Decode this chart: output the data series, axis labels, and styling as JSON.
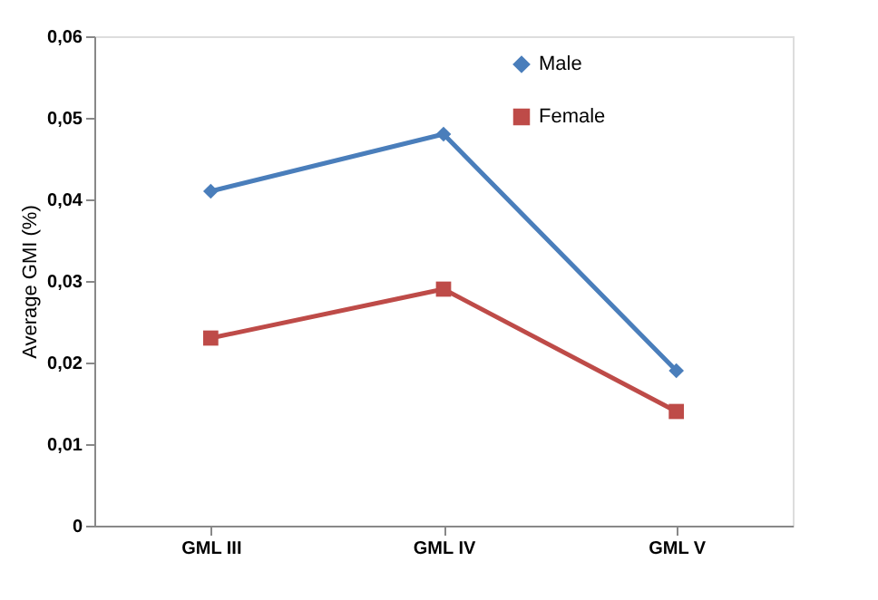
{
  "chart_data": {
    "type": "line",
    "ylabel": "Average GMI (%)",
    "categories": [
      "GML III",
      "GML IV",
      "GML V"
    ],
    "series": [
      {
        "name": "Male",
        "color": "#4a7ebb",
        "values": [
          0.041,
          0.048,
          0.019
        ],
        "marker": "diamond"
      },
      {
        "name": "Female",
        "color": "#be4b48",
        "values": [
          0.023,
          0.029,
          0.014
        ],
        "marker": "square"
      }
    ],
    "ylim": [
      0,
      0.06
    ],
    "yticks": [
      0,
      {
        "value": 0.01,
        "label": "0,01"
      },
      {
        "value": 0.02,
        "label": "0,02"
      },
      {
        "value": 0.03,
        "label": "0,03"
      },
      {
        "value": 0.04,
        "label": "0,04"
      },
      {
        "value": 0.05,
        "label": "0,05"
      },
      {
        "value": 0.06,
        "label": "0,06"
      }
    ],
    "grid": false,
    "legend": "top right",
    "line_style": "solid"
  }
}
